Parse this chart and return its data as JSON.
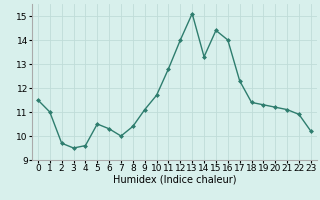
{
  "x": [
    0,
    1,
    2,
    3,
    4,
    5,
    6,
    7,
    8,
    9,
    10,
    11,
    12,
    13,
    14,
    15,
    16,
    17,
    18,
    19,
    20,
    21,
    22,
    23
  ],
  "y": [
    11.5,
    11.0,
    9.7,
    9.5,
    9.6,
    10.5,
    10.3,
    10.0,
    10.4,
    11.1,
    11.7,
    12.8,
    14.0,
    15.1,
    13.3,
    14.4,
    14.0,
    12.3,
    11.4,
    11.3,
    11.2,
    11.1,
    10.9,
    10.2
  ],
  "xlim": [
    -0.5,
    23.5
  ],
  "ylim": [
    9,
    15.5
  ],
  "yticks": [
    9,
    10,
    11,
    12,
    13,
    14,
    15
  ],
  "xticks": [
    0,
    1,
    2,
    3,
    4,
    5,
    6,
    7,
    8,
    9,
    10,
    11,
    12,
    13,
    14,
    15,
    16,
    17,
    18,
    19,
    20,
    21,
    22,
    23
  ],
  "xlabel": "Humidex (Indice chaleur)",
  "line_color": "#2e7d6e",
  "marker": "D",
  "marker_size": 2,
  "line_width": 1.0,
  "bg_color": "#d8f0ec",
  "grid_color": "#c0dcd8",
  "xlabel_fontsize": 7,
  "tick_fontsize": 6.5
}
